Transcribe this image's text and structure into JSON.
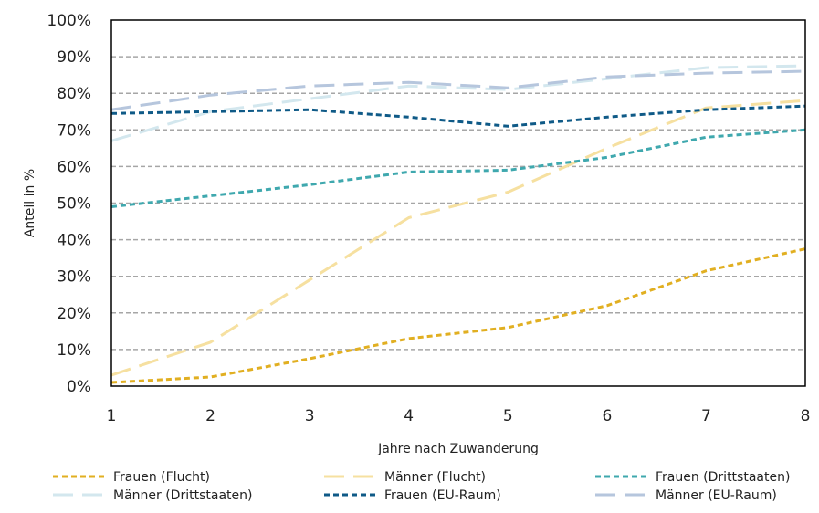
{
  "chart_data": {
    "type": "line",
    "title": "",
    "xlabel": "Jahre nach Zuwanderung",
    "ylabel": "Anteil in %",
    "x": [
      1,
      2,
      3,
      4,
      5,
      6,
      7,
      8
    ],
    "x_tick_labels": [
      "1",
      "2",
      "3",
      "4",
      "5",
      "6",
      "7",
      "8"
    ],
    "xlim": [
      1,
      8
    ],
    "ylim": [
      0,
      100
    ],
    "y_ticks": [
      0,
      10,
      20,
      30,
      40,
      50,
      60,
      70,
      80,
      90,
      100
    ],
    "y_tick_labels": [
      "0%",
      "10%",
      "20%",
      "30%",
      "40%",
      "50%",
      "60%",
      "70%",
      "80%",
      "90%",
      "100%"
    ],
    "grid": "horizontal dashed",
    "legend_position": "bottom",
    "series": [
      {
        "name": "Frauen (Flucht)",
        "color": "#E1AF21",
        "dash": "short",
        "values": [
          1,
          2.5,
          7.5,
          13,
          16,
          22,
          31.5,
          37.5
        ]
      },
      {
        "name": "Männer (Flucht)",
        "color": "#F6E0A0",
        "dash": "long",
        "values": [
          3,
          12,
          29,
          46,
          53,
          65,
          76,
          78
        ]
      },
      {
        "name": "Frauen (Drittstaaten)",
        "color": "#3FA8AE",
        "dash": "short",
        "values": [
          49,
          52,
          55,
          58.5,
          59,
          62.5,
          68,
          70
        ]
      },
      {
        "name": "Männer (Drittstaaten)",
        "color": "#D3E7EE",
        "dash": "long",
        "values": [
          67,
          75,
          78.5,
          82,
          81,
          84,
          87,
          87.5
        ]
      },
      {
        "name": "Frauen (EU-Raum)",
        "color": "#0F5A87",
        "dash": "short",
        "values": [
          74.5,
          75,
          75.5,
          73.5,
          71,
          73.5,
          75.5,
          76.5
        ]
      },
      {
        "name": "Männer (EU-Raum)",
        "color": "#B6C6DD",
        "dash": "long",
        "values": [
          75.5,
          79.5,
          82,
          83,
          81.5,
          84.5,
          85.5,
          86
        ]
      }
    ]
  }
}
